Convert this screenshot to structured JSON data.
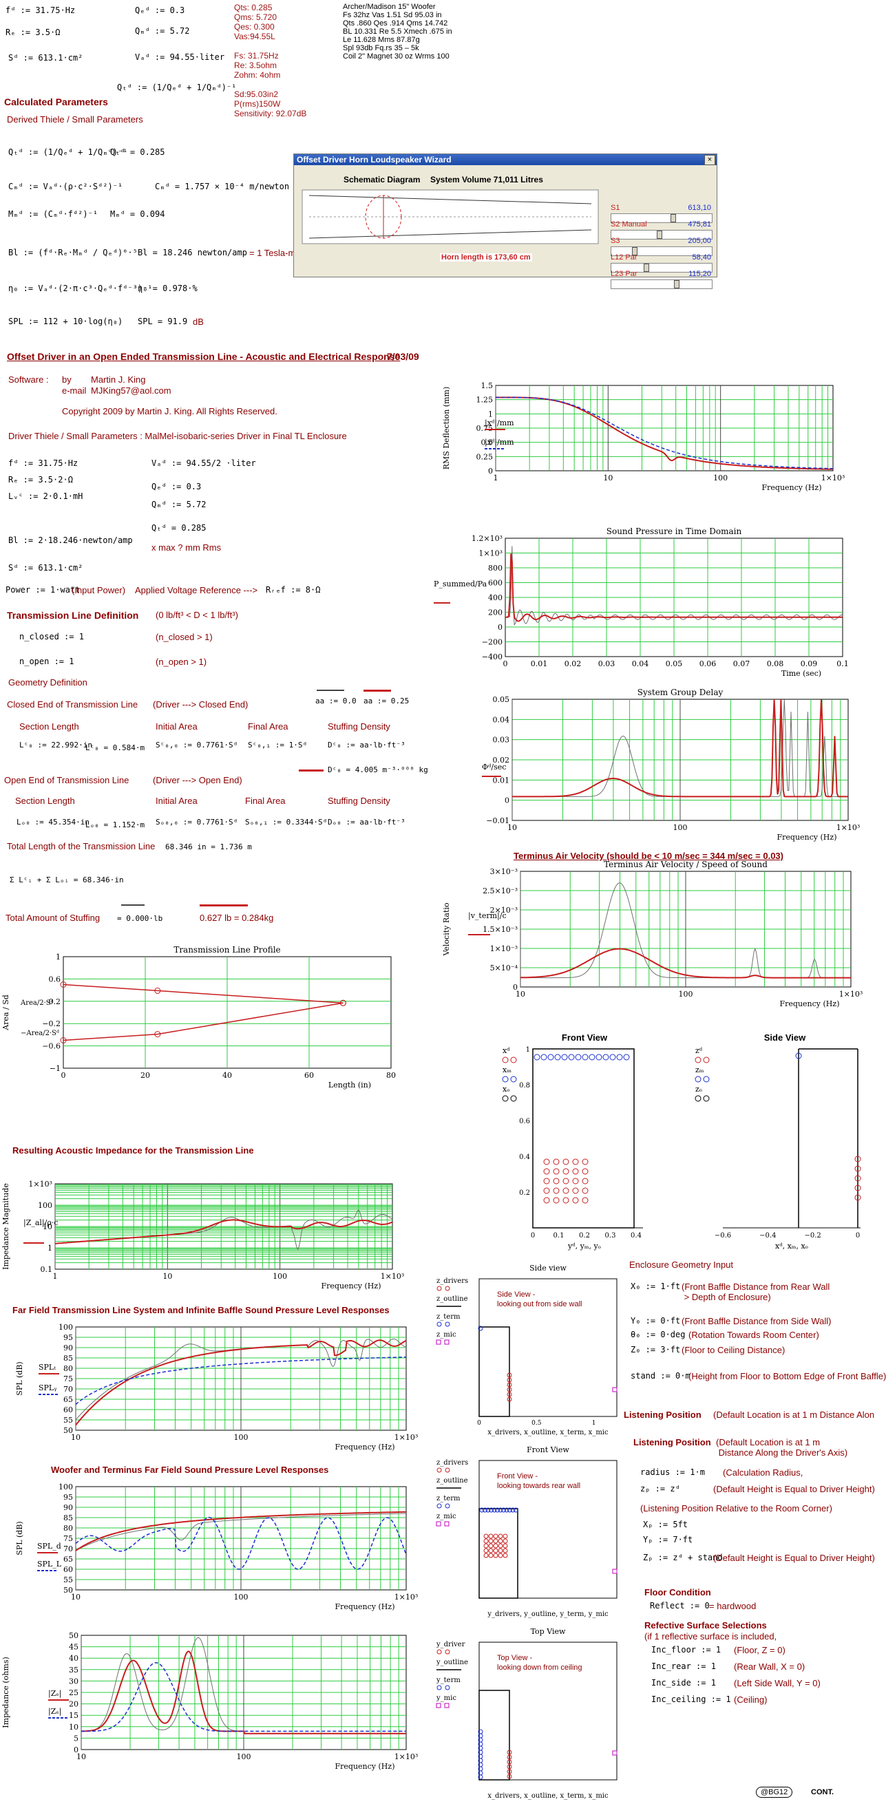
{
  "top": {
    "fd": "fᵈ := 31.75·Hz",
    "re": "Rₑ := 3.5·Ω",
    "sd": "Sᵈ := 613.1·cm²",
    "qed": "Qₑᵈ := 0.3",
    "qmd": "Qₘᵈ := 5.72",
    "vad": "Vₐᵈ := 94.55·liter",
    "qtd": "Qₜᵈ := (1/Qₑᵈ + 1/Qₘᵈ)⁻¹",
    "specs_mid": [
      "Qts: 0.285",
      "Qms: 5.720",
      "Qes: 0.300",
      "Vas:94.55L",
      "",
      "Fs: 31.75Hz",
      "Re: 3.5ohm",
      "Zohm: 4ohm",
      "",
      "Sd:95.03in2",
      "P(rms)150W",
      "Sensitivity: 92.07dB"
    ],
    "specs_right": [
      "Archer/Madison 15\" Woofer",
      "Fs 32hz Vas 1.51 Sd 95.03 in",
      "Qts .860 Qes .914 Qms 14.742",
      "BL 10.331 Re 5.5 Xmech .675 in",
      "Le 11.628 Mms 87.87g",
      "Spl 93db Fq.rs 35 – 5k",
      "Coil 2\" Magnet 30 oz Wrms 100"
    ]
  },
  "calc": {
    "heading": "Calculated Parameters",
    "subheading": "Derived Thiele / Small Parameters",
    "qtd_formula": "Qₜᵈ := (1/Qₑᵈ + 1/Qₘᵈ)⁻¹",
    "qtd_value": "Qₜᵈ = 0.285",
    "cmd_formula": "Cₘᵈ := Vₐᵈ·(ρ·c²·Sᵈ²)⁻¹",
    "cmd_value": "Cₘᵈ = 1.757 × 10⁻⁴ m/newton",
    "mmd_formula": "Mₘᵈ := (Cₘᵈ·fᵈ²)⁻¹",
    "mmd_value": "Mₘᵈ = 0.094",
    "bl_formula": "Bl := (fᵈ·Rₑ·Mₘᵈ / Qₑᵈ)⁰·⁵",
    "bl_value": "Bl = 18.246 newton/amp",
    "bl_note": "= 1 Tesla-m",
    "eta_formula": "η₀ := Vₐᵈ·(2·π·c³·Qₑᵈ·fᵈ⁻³)⁻¹",
    "eta_value": "η₀ = 0.978·%",
    "spl_formula": "SPL := 112 + 10·log(η₀)",
    "spl_value": "SPL = 91.9",
    "spl_unit": "dB"
  },
  "wizard": {
    "title": "Offset Driver Horn Loudspeaker Wizard",
    "close": "×",
    "schematic": "Schematic Diagram",
    "volume": "System Volume 71,011 Litres",
    "horn_length": "Horn length is 173,60 cm",
    "sliders": [
      {
        "label": "S1",
        "value": "613,10",
        "pos": 0.62
      },
      {
        "label": "S2 Manual",
        "value": "475,81",
        "pos": 0.48
      },
      {
        "label": "S3",
        "value": "205,00",
        "pos": 0.22
      },
      {
        "label": "L12 Par",
        "value": "58,40",
        "pos": 0.34
      },
      {
        "label": "L23 Par",
        "value": "115,20",
        "pos": 0.66
      }
    ]
  },
  "doc": {
    "title": "Offset Driver in an Open Ended Transmission Line - Acoustic and Electrical Response",
    "date": "7/03/09",
    "software_label": "Software :",
    "by": "by",
    "author": "Martin J. King",
    "email_label": "e-mail",
    "email": "MJKing57@aol.com",
    "copyright": "Copyright 2009 by Martin J. King. All Rights Reserved.",
    "driver_line": "Driver Thiele / Small Parameters : MalMel-isobaric-series  Driver in Final TL Enclosure"
  },
  "driver": {
    "fd": "fᵈ := 31.75·Hz",
    "re": "Rₑ := 3.5·2·Ω",
    "lvc": "Lᵥᶜ := 2·0.1·mH",
    "bl": "Bl := 2·18.246·newton/amp",
    "sd": "Sᵈ := 613.1·cm²",
    "vad": "Vₐᵈ := 94.55/2 ·liter",
    "qed": "Qₑᵈ := 0.3",
    "qmd": "Qₘᵈ := 5.72",
    "qtd": "Qₜᵈ = 0.285",
    "xmax": "x max ? mm Rms",
    "power": "Power := 1·watt",
    "power_note": "(Input Power)",
    "applied": "Applied Voltage Reference --->",
    "rref": "Rᵣₑf := 8·Ω"
  },
  "tl": {
    "heading": "Transmission Line Definition",
    "density_note": "(0 lb/ft³ < D < 1 lb/ft³)",
    "n_closed": "n_closed := 1",
    "n_closed_note": "(n_closed > 1)",
    "n_open": "n_open := 1",
    "n_open_note": "(n_open > 1)",
    "geometry": "Geometry Definition",
    "closed_end": "Closed End of Transmission Line",
    "closed_dir": "(Driver ---> Closed End)",
    "aa1": "aa := 0.0",
    "aa2": "aa := 0.25",
    "col_section": "Section Length",
    "col_initial": "Initial Area",
    "col_final": "Final Area",
    "col_stuff": "Stuffing Density",
    "lc": "Lᶜ₀ := 22.992·in",
    "lc_val": "Lᶜ₀ = 0.584·m",
    "sc0": "Sᶜ₀,₀ := 0.7761·Sᵈ",
    "sc1": "Sᶜ₀,₁ := 1·Sᵈ",
    "dc": "Dᶜ₀ := aa·lb·ft⁻³",
    "dc_val": "Dᶜ₀ = 4.005 m⁻³·⁰⁰⁰ kg",
    "open_end": "Open End of Transmission Line",
    "open_dir": "(Driver ---> Open End)",
    "lo": "Lₒ₀ := 45.354·in",
    "lo_val": "Lₒ₀ = 1.152·m",
    "so0": "Sₒ₀,₀ := 0.7761·Sᵈ",
    "so1": "Sₒ₀,₁ := 0.3344·Sᵈ",
    "do": "Dₒ₀ := aa·lb·ft⁻³",
    "total": "Total Length of the Transmission Line",
    "total_val": "68.346 in = 1.736 m",
    "sum": "Σ Lᶜᵢ + Σ Lₒᵢ = 68.346·in",
    "stuffing": "Total Amount of Stuffing",
    "stuff1": "= 0.000·lb",
    "stuff2": "0.627 lb = 0.284kg"
  },
  "charts": {
    "rms": {
      "ylabel": "RMS Deflection (mm)",
      "xlabel": "Frequency (Hz)",
      "yticks": [
        "0",
        "0.25",
        "0.5",
        "0.75",
        "1",
        "1.25",
        "1.5"
      ],
      "xticks": [
        "1",
        "10",
        "100",
        "1×10³"
      ],
      "legend": [
        "|xᵈ|/mm",
        "|xᵈ|/mm"
      ]
    },
    "press": {
      "title": "Sound Pressure in Time Domain",
      "xlabel": "Time (sec)",
      "yticks": [
        "−400",
        "−200",
        "0",
        "200",
        "400",
        "600",
        "800",
        "1×10³",
        "1.2×10³"
      ],
      "xticks": [
        "0",
        "0.01",
        "0.02",
        "0.03",
        "0.04",
        "0.05",
        "0.06",
        "0.07",
        "0.08",
        "0.09",
        "0.1"
      ],
      "legend": "P_summed/Pa"
    },
    "delay": {
      "title": "System Group Delay",
      "xlabel": "Frequency (Hz)",
      "yticks": [
        "−0.01",
        "0",
        "0.01",
        "0.02",
        "0.03",
        "0.04",
        "0.05"
      ],
      "xticks": [
        "10",
        "100",
        "1×10³"
      ],
      "legend": "Φᵈ/sec"
    },
    "velocity": {
      "heading": "Terminus Air Velocity (should be < 10 m/sec = 344 m/sec = 0.03)",
      "title": "Terminus Air Velocity / Speed of Sound",
      "ylabel": "Velocity Ratio",
      "xlabel": "Frequency (Hz)",
      "yticks": [
        "0",
        "5×10⁻⁴",
        "1×10⁻³",
        "1.5×10⁻³",
        "2×10⁻³",
        "2.5×10⁻³",
        "3×10⁻³"
      ],
      "xticks": [
        "10",
        "100",
        "1×10³"
      ],
      "legend": "|v_term|/c"
    },
    "profile": {
      "title": "Transmission Line Profile",
      "ylabel": "Area / Sd",
      "xlabel": "Length (in)",
      "yticks": [
        "−1",
        "−0.6",
        "−0.2",
        "0.2",
        "0.6",
        "1"
      ],
      "xticks": [
        "0",
        "20",
        "40",
        "60",
        "80"
      ],
      "legend": [
        "Area/2·Sᵈ",
        "−Area/2·Sᵈ"
      ]
    },
    "impedance_ac": {
      "heading": "Resulting Acoustic Impedance for the Transmission Line",
      "ylabel": "Impedance Magnitude",
      "xlabel": "Frequency (Hz)",
      "yticks": [
        "0.1",
        "1",
        "10",
        "100",
        "1×10³"
      ],
      "xticks": [
        "1",
        "10",
        "100",
        "1×10³"
      ],
      "legend": "|Z_al|/ρ·c"
    },
    "farfield": {
      "heading": "Far Field Transmission Line System and Infinite Baffle Sound Pressure Level Responses",
      "ylabel": "SPL (dB)",
      "xlabel": "Frequency (Hz)",
      "yticks": [
        "50",
        "55",
        "60",
        "65",
        "70",
        "75",
        "80",
        "85",
        "90",
        "95",
        "100"
      ],
      "xticks": [
        "10",
        "100",
        "1×10³"
      ],
      "legend": [
        "SPLₜ",
        "SPLᵧ"
      ]
    },
    "woofer": {
      "heading": "Woofer and Terminus Far Field Sound Pressure Level Responses",
      "ylabel": "SPL (dB)",
      "xlabel": "Frequency (Hz)",
      "yticks": [
        "50",
        "55",
        "60",
        "65",
        "70",
        "75",
        "80",
        "85",
        "90",
        "95",
        "100"
      ],
      "xticks": [
        "10",
        "100",
        "1×10³"
      ],
      "legend": [
        "SPL_d",
        "SPL_L"
      ]
    },
    "impedance_el": {
      "ylabel": "Impedance (ohms)",
      "xlabel": "Frequency (Hz)",
      "yticks": [
        "0",
        "5",
        "10",
        "15",
        "20",
        "25",
        "30",
        "35",
        "40",
        "45",
        "50"
      ],
      "xticks": [
        "10",
        "100",
        "1×10³"
      ],
      "legend": [
        "|Zₑ|",
        "|Zₑ|"
      ]
    }
  },
  "views": {
    "front": {
      "title": "Front View",
      "xlabel": "yᵈ, yₘ, yₒ",
      "yticks": [
        "0.2",
        "0.4",
        "0.6",
        "0.8",
        "1"
      ],
      "xticks": [
        "0",
        "0.1",
        "0.2",
        "0.3",
        "0.4"
      ],
      "legend": [
        "xᵈ",
        "xₘ",
        "xₒ"
      ]
    },
    "side": {
      "title": "Side View",
      "xlabel": "xᵈ, xₘ, xₒ",
      "xticks": [
        "−0.6",
        "−0.4",
        "−0.2",
        "0"
      ],
      "legend": [
        "zᵈ",
        "zₘ",
        "zₒ"
      ]
    },
    "room_side": {
      "title": "Side view",
      "note": "Side View -\nlooking out from side wall",
      "xlabel": "x_drivers, x_outline, x_term, x_mic",
      "legend": [
        "z_drivers",
        "z_outline",
        "z_term",
        "z_mic"
      ],
      "xticks": [
        "0",
        "0.5",
        "1"
      ]
    },
    "room_front": {
      "title": "Front View",
      "note": "Front View -\nlooking towards rear wall",
      "xlabel": "y_drivers, y_outline, y_term, y_mic",
      "legend": [
        "z_drivers",
        "z_outline",
        "z_term",
        "z_mic"
      ]
    },
    "room_top": {
      "title": "Top View",
      "note": "Top View -\nlooking down from ceiling",
      "xlabel": "x_drivers, x_outline, x_term, x_mic",
      "legend": [
        "y_driver",
        "y_outline",
        "y_term",
        "y_mic"
      ]
    }
  },
  "enclosure": {
    "heading": "Enclosure Geometry Input",
    "x0": "X₀ := 1·ft",
    "x0_note": "(Front Baffle Distance from Rear Wall\n > Depth of Enclosure)",
    "y0": "Y₀ := 0·ft",
    "y0_note": "(Front Baffle Distance from Side Wall)",
    "theta": "θ₀ := 0·deg",
    "theta_note": "(Rotation Towards Room Center)",
    "z0": "Z₀ := 3·ft",
    "z0_note": "(Floor to Ceiling Distance)",
    "stand": "stand := 0·m",
    "stand_note": "(Height from Floor to Bottom Edge of Front Baffle)",
    "listen1": "Listening Position",
    "listen1_note": "(Default Location is at 1 m Distance Alon",
    "listen2": "Listening Position",
    "listen2_note": "(Default Location is at 1 m\n Distance Along the Driver's Axis)",
    "radius": "radius := 1·m",
    "radius_note": "(Calculation Radius,",
    "zp": "zₚ := zᵈ",
    "zp_note": "(Default Height is Equal to Driver Height)",
    "rel": "(Listening Position Relative to the Room Corner)",
    "xp": "Xₚ := 5ft",
    "yp": "Yₚ := 7·ft",
    "zp2": "Zₚ := zᵈ + stand",
    "zp2_note": "(Default Height is Equal to Driver Height)",
    "floor": "Floor Condition",
    "reflect": "Reflect := 0",
    "reflect_note": "= hardwood",
    "refl_heading": "Refective Surface Selections",
    "refl_sub": "(if 1 reflective surface is included,",
    "inc_floor": "Inc_floor := 1",
    "inc_floor_note": "(Floor, Z = 0)",
    "inc_rear": "Inc_rear := 1",
    "inc_rear_note": "(Rear Wall, X = 0)",
    "inc_side": "Inc_side := 1",
    "inc_side_note": "(Left Side Wall, Y = 0)",
    "inc_ceiling": "Inc_ceiling := 1",
    "inc_ceiling_note": "(Ceiling)"
  },
  "footer": {
    "badge": "@BG12",
    "cont": "CONT."
  },
  "colors": {
    "red": "#c81e1e",
    "grid": "#2ecc40",
    "gray": "#707070",
    "blue": "#1a2fd0"
  }
}
